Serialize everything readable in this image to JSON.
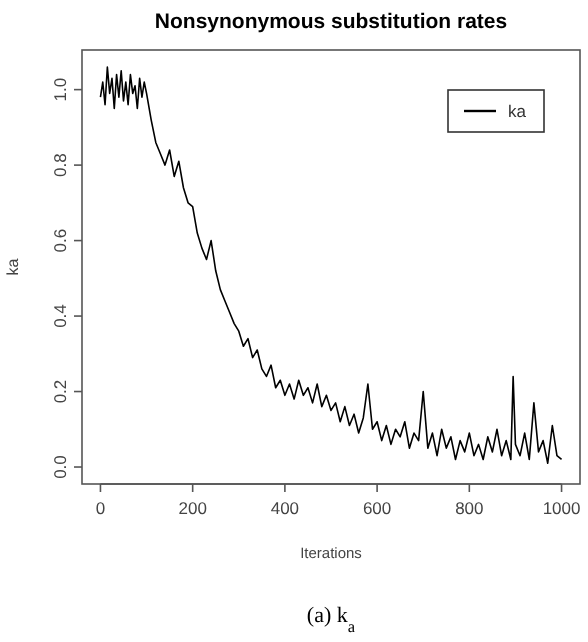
{
  "chart_data": {
    "type": "line",
    "title": "Nonsynonymous substitution rates",
    "xlabel": "Iterations",
    "ylabel": "ka",
    "annotations": [
      "(a) k$_{a}$"
    ],
    "xlim": [
      -40,
      1040
    ],
    "xticks": [
      0,
      200,
      400,
      600,
      800,
      1000
    ],
    "ylim": [
      -0.045,
      1.105
    ],
    "yticks": [
      {
        "value": 0,
        "label": "0.0"
      },
      0.2,
      0.4,
      0.6,
      0.8,
      {
        "value": 1,
        "label": "1.0"
      }
    ],
    "grid": false,
    "legend": "top right",
    "marker": "none",
    "line_style": "solid",
    "series": [
      {
        "name": "ka",
        "color": "#000000",
        "x": [
          0,
          5,
          10,
          15,
          20,
          25,
          30,
          35,
          40,
          45,
          50,
          55,
          60,
          65,
          70,
          75,
          80,
          85,
          90,
          95,
          100,
          110,
          120,
          130,
          140,
          150,
          160,
          170,
          180,
          190,
          200,
          210,
          220,
          230,
          240,
          250,
          260,
          270,
          280,
          290,
          300,
          310,
          320,
          330,
          340,
          350,
          360,
          370,
          380,
          390,
          400,
          410,
          420,
          430,
          440,
          450,
          460,
          470,
          480,
          490,
          500,
          510,
          520,
          530,
          540,
          550,
          560,
          570,
          580,
          590,
          600,
          610,
          620,
          630,
          640,
          650,
          660,
          670,
          680,
          690,
          700,
          710,
          720,
          730,
          740,
          750,
          760,
          770,
          780,
          790,
          800,
          810,
          820,
          830,
          840,
          850,
          860,
          870,
          880,
          890,
          895,
          900,
          910,
          920,
          930,
          940,
          950,
          960,
          970,
          980,
          990,
          1000
        ],
        "values": [
          0.98,
          1.02,
          0.96,
          1.06,
          0.99,
          1.03,
          0.95,
          1.04,
          0.98,
          1.05,
          0.97,
          1.02,
          0.96,
          1.04,
          0.99,
          1.01,
          0.95,
          1.03,
          0.98,
          1.02,
          0.99,
          0.92,
          0.86,
          0.83,
          0.8,
          0.84,
          0.77,
          0.81,
          0.74,
          0.7,
          0.69,
          0.62,
          0.58,
          0.55,
          0.6,
          0.52,
          0.47,
          0.44,
          0.41,
          0.38,
          0.36,
          0.32,
          0.34,
          0.29,
          0.31,
          0.26,
          0.24,
          0.27,
          0.21,
          0.23,
          0.19,
          0.22,
          0.18,
          0.23,
          0.19,
          0.21,
          0.17,
          0.22,
          0.16,
          0.19,
          0.15,
          0.17,
          0.12,
          0.16,
          0.11,
          0.14,
          0.09,
          0.13,
          0.22,
          0.1,
          0.12,
          0.07,
          0.11,
          0.06,
          0.1,
          0.08,
          0.12,
          0.05,
          0.09,
          0.07,
          0.2,
          0.05,
          0.09,
          0.03,
          0.1,
          0.05,
          0.08,
          0.02,
          0.07,
          0.04,
          0.09,
          0.03,
          0.06,
          0.02,
          0.08,
          0.04,
          0.1,
          0.03,
          0.07,
          0.02,
          0.24,
          0.06,
          0.03,
          0.09,
          0.02,
          0.17,
          0.04,
          0.07,
          0.01,
          0.11,
          0.03,
          0.02
        ]
      }
    ]
  }
}
